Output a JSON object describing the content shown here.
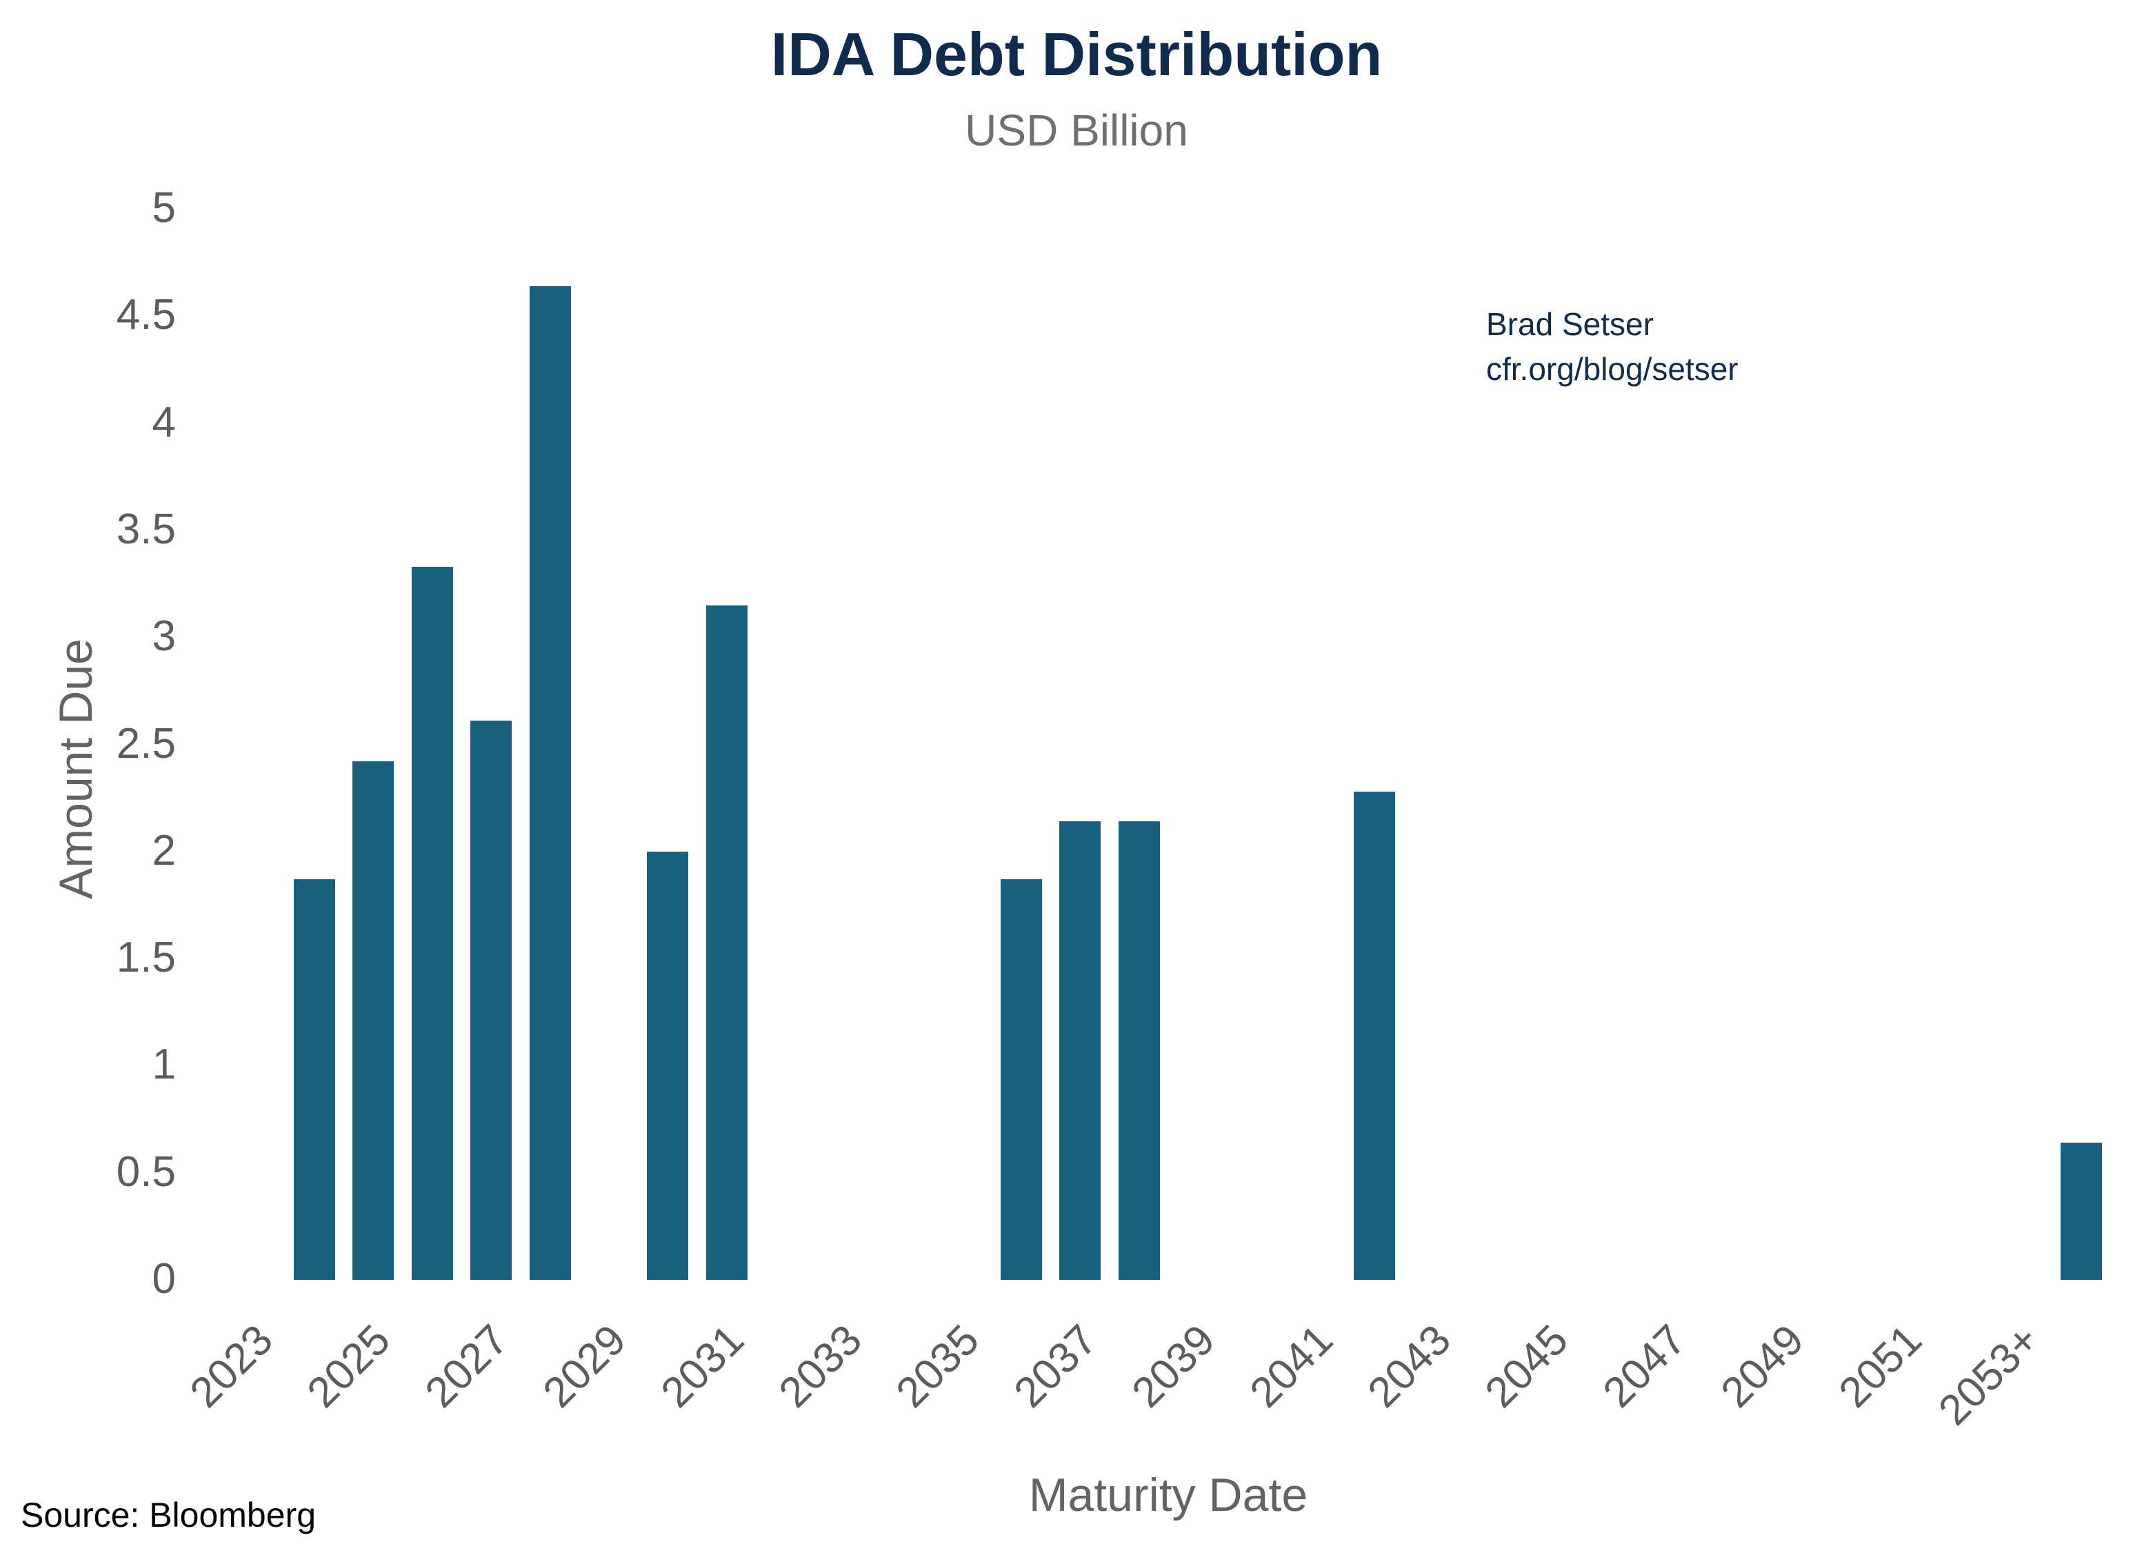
{
  "header": {
    "title": "IDA Debt Distribution",
    "subtitle": "USD Billion"
  },
  "annotation": {
    "line1": "Brad Setser",
    "line2": "cfr.org/blog/setser"
  },
  "axes": {
    "y_label": "Amount Due",
    "x_label": "Maturity Date"
  },
  "source": "Source: Bloomberg",
  "colors": {
    "bar": "#17617f",
    "navy": "#102b4e",
    "gray": "#636363",
    "tick_gray": "#5c5c5c",
    "black": "#000000"
  },
  "chart_data": {
    "type": "bar",
    "title": "IDA Debt Distribution",
    "subtitle": "USD Billion",
    "xlabel": "Maturity Date",
    "ylabel": "Amount Due",
    "units": "USD Billion",
    "ylim": [
      0,
      5
    ],
    "grid": false,
    "legend": null,
    "y_ticks": [
      0,
      0.5,
      1,
      1.5,
      2,
      2.5,
      3,
      3.5,
      4,
      4.5,
      5
    ],
    "x_tick_labels": [
      "2023",
      "2025",
      "2027",
      "2029",
      "2031",
      "2033",
      "2035",
      "2037",
      "2039",
      "2041",
      "2043",
      "2045",
      "2047",
      "2049",
      "2051",
      "2053+"
    ],
    "bars": [
      {
        "maturity": "2024",
        "slot": 2024,
        "value": 1.87
      },
      {
        "maturity": "2025",
        "slot": 2025,
        "value": 2.42
      },
      {
        "maturity": "2026",
        "slot": 2026,
        "value": 3.33
      },
      {
        "maturity": "2027",
        "slot": 2027,
        "value": 2.61
      },
      {
        "maturity": "2028",
        "slot": 2028,
        "value": 4.64
      },
      {
        "maturity": "2030",
        "slot": 2030,
        "value": 2.0
      },
      {
        "maturity": "2031",
        "slot": 2031,
        "value": 3.15
      },
      {
        "maturity": "2036",
        "slot": 2036,
        "value": 1.87
      },
      {
        "maturity": "2037",
        "slot": 2037,
        "value": 2.14
      },
      {
        "maturity": "2038",
        "slot": 2038,
        "value": 2.14
      },
      {
        "maturity": "2042",
        "slot": 2042,
        "value": 2.28
      },
      {
        "maturity": "2053+",
        "slot": 2054,
        "value": 0.64
      }
    ]
  }
}
